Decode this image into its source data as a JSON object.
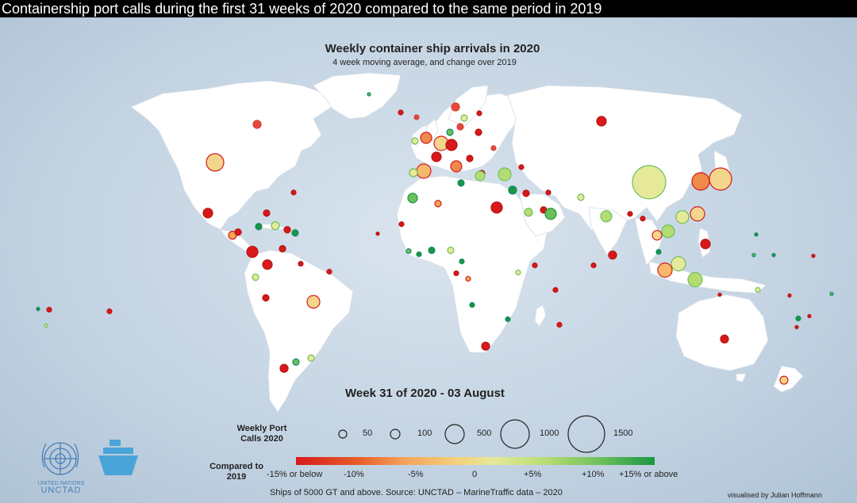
{
  "window": {
    "title": "Containership port calls during the first 31 weeks of 2020 compared to the same period in 2019"
  },
  "map": {
    "title": "Weekly container ship arrivals in 2020",
    "subtitle": "4 week moving average, and change over 2019",
    "week": "Week 31 of 2020 - 03 August"
  },
  "legend": {
    "size_title": "Weekly Port Calls 2020",
    "sizes": [
      {
        "value": 50,
        "label": "50"
      },
      {
        "value": 100,
        "label": "100"
      },
      {
        "value": 500,
        "label": "500"
      },
      {
        "value": 1000,
        "label": "1000"
      },
      {
        "value": 1500,
        "label": "1500"
      }
    ],
    "color_title": "Compared to 2019",
    "color_labels": [
      "-15% or below",
      "-10%",
      "-5%",
      "0",
      "+5%",
      "+10%",
      "+15% or above"
    ],
    "colors": {
      "low": "#d7191c",
      "mid": "#f3e08a",
      "high": "#1a9641"
    }
  },
  "source": "Ships of 5000 GT and above. Source: UNCTAD – MarineTraffic data – 2020",
  "credit": "visualised by Julian Hoffmann",
  "logos": {
    "un_line": "UNITED NATIONS",
    "unctad": "UNCTAD"
  },
  "icons": [
    "un-emblem-icon",
    "ship-icon"
  ]
}
